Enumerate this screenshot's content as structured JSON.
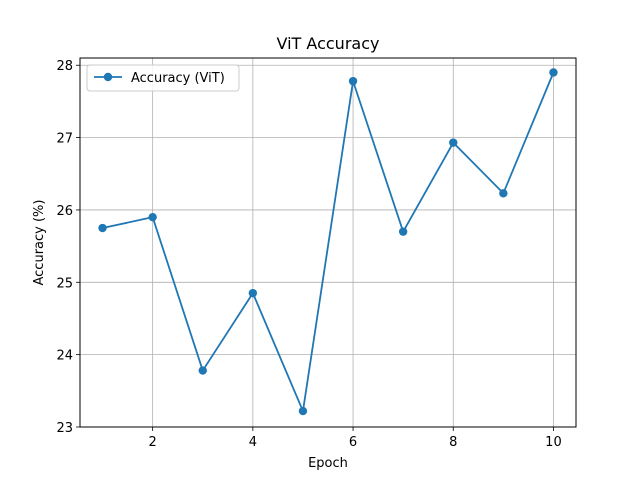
{
  "chart_data": {
    "type": "line",
    "title": "ViT Accuracy",
    "xlabel": "Epoch",
    "ylabel": "Accuracy (%)",
    "xlim": [
      0.55,
      10.45
    ],
    "ylim": [
      23.0,
      28.1
    ],
    "x_ticks": [
      2,
      4,
      6,
      8,
      10
    ],
    "y_ticks": [
      23,
      24,
      25,
      26,
      27,
      28
    ],
    "grid": true,
    "legend_position": "upper-left",
    "series": [
      {
        "name": "Accuracy (ViT)",
        "color": "#1f77b4",
        "marker": "circle",
        "x": [
          1,
          2,
          3,
          4,
          5,
          6,
          7,
          8,
          9,
          10
        ],
        "values": [
          25.75,
          25.9,
          23.78,
          24.85,
          23.22,
          27.78,
          25.7,
          26.93,
          26.23,
          27.9
        ]
      }
    ]
  }
}
